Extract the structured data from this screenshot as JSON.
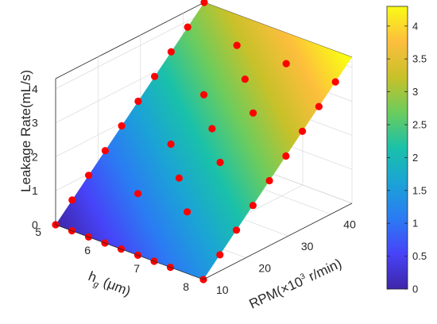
{
  "chart_data": {
    "type": "surface",
    "zlabel": "Leakage Rate(mL/s)",
    "xlabel_main": "h",
    "xlabel_sub": "g",
    "xlabel_unit": " (μm)",
    "ylabel_main": "RPM(",
    "ylabel_times": "×",
    "ylabel_ten": "10",
    "ylabel_exp": "3",
    "ylabel_unit": " r/min)",
    "x_range": [
      5,
      8
    ],
    "y_range": [
      10,
      45
    ],
    "z_range": [
      0,
      4.3
    ],
    "x_ticks": [
      "5",
      "6",
      "7",
      "8"
    ],
    "y_ticks": [
      "10",
      "20",
      "30",
      "40"
    ],
    "z_ticks": [
      "0",
      "1",
      "2",
      "3",
      "4"
    ],
    "colorbar_ticks": [
      "0",
      "0.5",
      "1",
      "1.5",
      "2",
      "2.5",
      "3",
      "3.5",
      "4"
    ],
    "colorbar_range": [
      0,
      4.3
    ],
    "colormap": [
      "#3e26a8",
      "#4743f8",
      "#2b7bf3",
      "#1ba3d6",
      "#1ac1a9",
      "#6ccc5d",
      "#c8c129",
      "#fdbe3d",
      "#f9fb15"
    ],
    "point_color": "#ff0000",
    "grid": true,
    "surface_edges": [
      {
        "x": 5,
        "y": 10,
        "z": 0.0
      },
      {
        "x": 8,
        "y": 10,
        "z": 0.0
      },
      {
        "x": 8,
        "y": 45,
        "z": 4.3
      },
      {
        "x": 5,
        "y": 45,
        "z": 4.3
      }
    ],
    "points": [
      {
        "x": 5,
        "y": 10,
        "z": 0.0
      },
      {
        "x": 5.33,
        "y": 10,
        "z": 0.0
      },
      {
        "x": 5.67,
        "y": 10,
        "z": 0.0
      },
      {
        "x": 6,
        "y": 10,
        "z": 0.0
      },
      {
        "x": 6.33,
        "y": 10,
        "z": 0.0
      },
      {
        "x": 6.67,
        "y": 10,
        "z": 0.0
      },
      {
        "x": 7,
        "y": 10,
        "z": 0.0
      },
      {
        "x": 7.33,
        "y": 10,
        "z": 0.0
      },
      {
        "x": 8,
        "y": 10,
        "z": 0.0
      },
      {
        "x": 5,
        "y": 13.89,
        "z": 0.478
      },
      {
        "x": 5,
        "y": 17.78,
        "z": 0.956
      },
      {
        "x": 5,
        "y": 21.67,
        "z": 1.433
      },
      {
        "x": 5,
        "y": 25.56,
        "z": 1.911
      },
      {
        "x": 5,
        "y": 29.44,
        "z": 2.389
      },
      {
        "x": 5,
        "y": 33.33,
        "z": 2.867
      },
      {
        "x": 5,
        "y": 37.22,
        "z": 3.344
      },
      {
        "x": 5,
        "y": 41.11,
        "z": 3.822
      },
      {
        "x": 5,
        "y": 45,
        "z": 4.3
      },
      {
        "x": 8,
        "y": 13.89,
        "z": 0.478
      },
      {
        "x": 8,
        "y": 17.78,
        "z": 0.956
      },
      {
        "x": 8,
        "y": 21.67,
        "z": 1.433
      },
      {
        "x": 8,
        "y": 25.56,
        "z": 1.911
      },
      {
        "x": 8,
        "y": 29.44,
        "z": 2.389
      },
      {
        "x": 8,
        "y": 33.33,
        "z": 2.867
      },
      {
        "x": 8,
        "y": 37.22,
        "z": 3.344
      },
      {
        "x": 8,
        "y": 41.11,
        "z": 3.822
      },
      {
        "x": 6,
        "y": 17.78,
        "z": 0.956
      },
      {
        "x": 6,
        "y": 25.56,
        "z": 1.911
      },
      {
        "x": 6,
        "y": 33.33,
        "z": 2.867
      },
      {
        "x": 6,
        "y": 41.11,
        "z": 3.822
      },
      {
        "x": 7,
        "y": 17.78,
        "z": 0.956
      },
      {
        "x": 7,
        "y": 25.56,
        "z": 1.911
      },
      {
        "x": 7,
        "y": 33.33,
        "z": 2.867
      },
      {
        "x": 7,
        "y": 41.11,
        "z": 3.822
      },
      {
        "x": 6.5,
        "y": 21.67,
        "z": 1.433
      },
      {
        "x": 6.5,
        "y": 29.44,
        "z": 2.389
      },
      {
        "x": 6.5,
        "y": 37.22,
        "z": 3.344
      }
    ]
  }
}
